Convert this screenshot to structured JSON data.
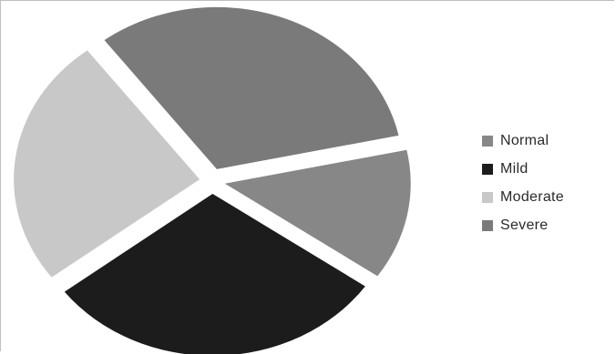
{
  "chart_data": {
    "type": "pie",
    "title": "",
    "legend_position": "right",
    "exploded": true,
    "slices": [
      {
        "label": "Normal",
        "value": 13,
        "color": "#878787"
      },
      {
        "label": "Mild",
        "value": 30,
        "color": "#1c1c1c"
      },
      {
        "label": "Moderate",
        "value": 25,
        "color": "#c8c8c8"
      },
      {
        "label": "Severe",
        "value": 32,
        "color": "#7a7a7a"
      }
    ]
  }
}
